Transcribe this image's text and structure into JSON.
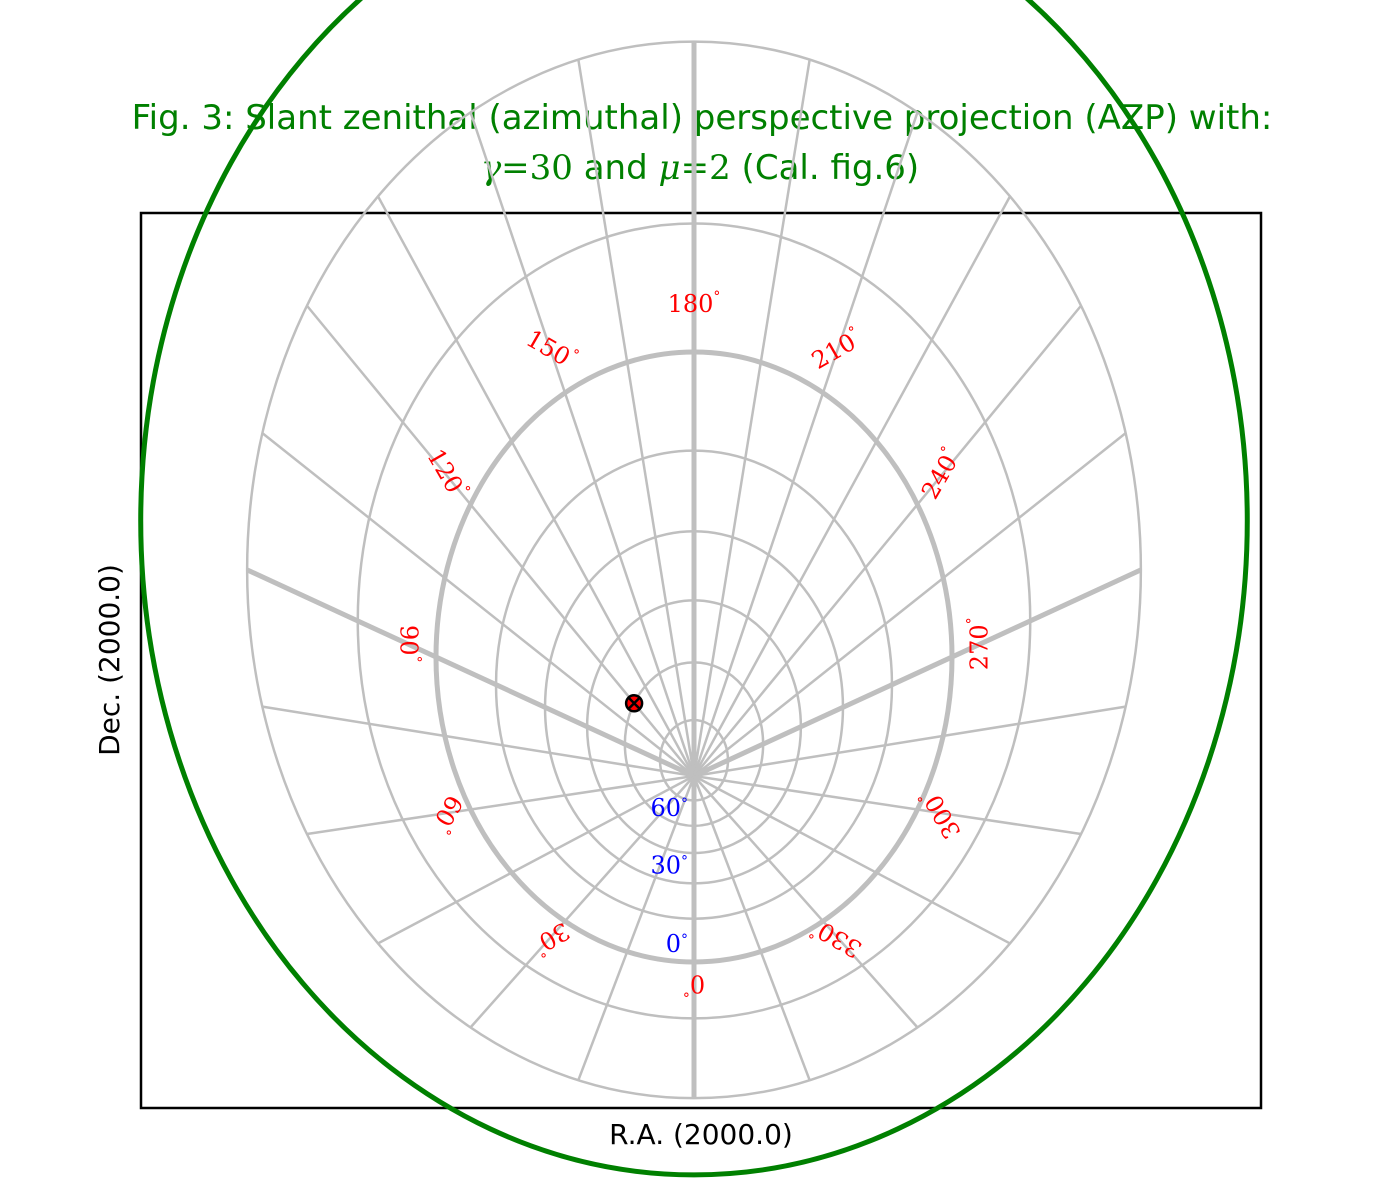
{
  "figure": {
    "title_line1": "Fig. 3: Slant zenithal (azimuthal) perspective projection (AZP) with:",
    "title_line2_parts": [
      "γ",
      "=",
      "30",
      " and ",
      "μ",
      "=",
      "2",
      " (Cal. fig.6)"
    ],
    "xlabel": "R.A. (2000.0)",
    "ylabel": "Dec. (2000.0)"
  },
  "colors": {
    "title": "#008000",
    "border": "#008000",
    "grid": "#bfbfbf",
    "ra_labels": "#ff0000",
    "dec_labels": "#0000ff",
    "marker_fill": "#ff0000",
    "marker_edge": "#000000"
  },
  "chart_data": {
    "type": "scatter",
    "projection": "AZP",
    "projection_params": {
      "gamma": 30,
      "mu": 2
    },
    "title": "Fig. 3: Slant zenithal (azimuthal) perspective projection (AZP) with: γ=30 and μ=2 (Cal. fig.6)",
    "xlabel": "R.A. (2000.0)",
    "ylabel": "Dec. (2000.0)",
    "ra_grid_step_deg": 15,
    "dec_grid_deg": [
      -30,
      -15,
      0,
      15,
      30,
      45,
      60,
      75
    ],
    "ra_labels": [
      {
        "ra": 0,
        "text": "0"
      },
      {
        "ra": 30,
        "text": "30"
      },
      {
        "ra": 60,
        "text": "60"
      },
      {
        "ra": 90,
        "text": "90"
      },
      {
        "ra": 120,
        "text": "120"
      },
      {
        "ra": 150,
        "text": "150"
      },
      {
        "ra": 180,
        "text": "180"
      },
      {
        "ra": 210,
        "text": "210"
      },
      {
        "ra": 240,
        "text": "240"
      },
      {
        "ra": 270,
        "text": "270"
      },
      {
        "ra": 300,
        "text": "300"
      },
      {
        "ra": 330,
        "text": "330"
      }
    ],
    "dec_labels": [
      {
        "dec": 0,
        "text": "0"
      },
      {
        "dec": 30,
        "text": "30"
      },
      {
        "dec": 60,
        "text": "60"
      }
    ],
    "points": [
      {
        "ra": 120,
        "dec": 60,
        "marker": "circle-x"
      }
    ]
  }
}
